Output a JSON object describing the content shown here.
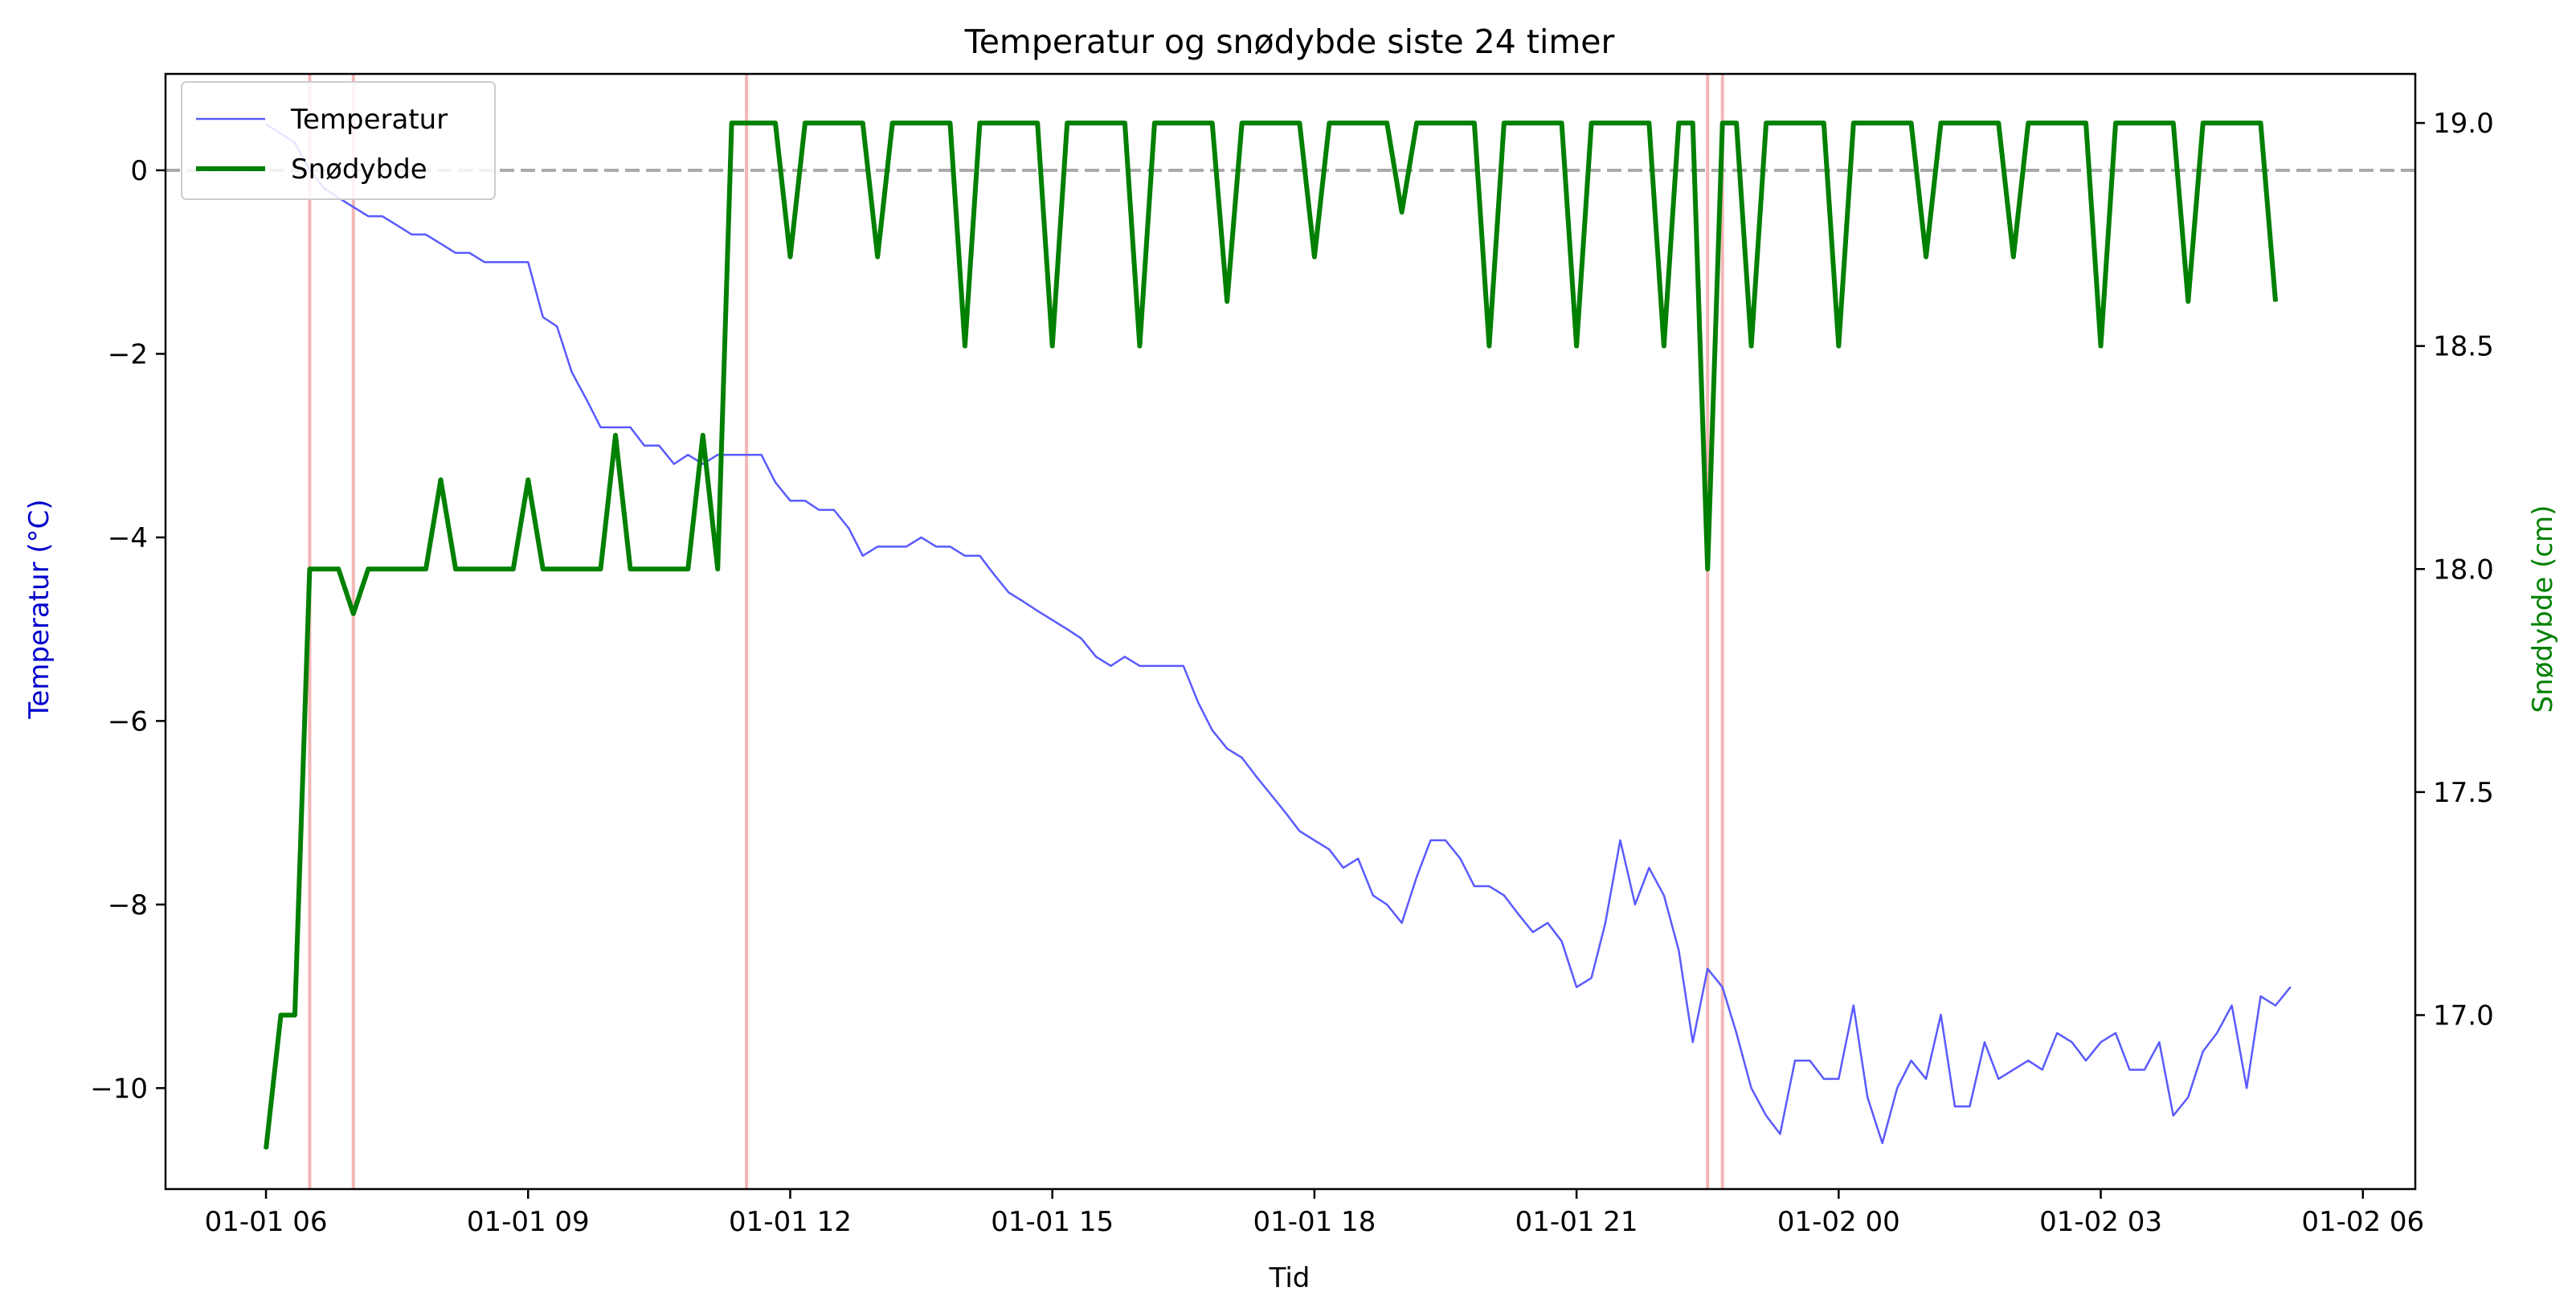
{
  "chart_data": {
    "type": "line",
    "title": "Temperatur og snødybde siste 24 timer",
    "xlabel": "Tid",
    "ylabel_left": "Temperatur (°C)",
    "ylabel_right": "Snødybde (cm)",
    "ylim_left": [
      -11.1,
      1.05
    ],
    "ylim_right": [
      16.61,
      19.11
    ],
    "x_unit": "hours since 01-01 00:00",
    "xlim_hours": [
      4.85,
      30.6
    ],
    "x_ticks": [
      {
        "hours": 6,
        "label": "01-01 06"
      },
      {
        "hours": 9,
        "label": "01-01 09"
      },
      {
        "hours": 12,
        "label": "01-01 12"
      },
      {
        "hours": 15,
        "label": "01-01 15"
      },
      {
        "hours": 18,
        "label": "01-01 18"
      },
      {
        "hours": 21,
        "label": "01-01 21"
      },
      {
        "hours": 24,
        "label": "01-02 00"
      },
      {
        "hours": 27,
        "label": "01-02 03"
      },
      {
        "hours": 30,
        "label": "01-02 06"
      }
    ],
    "y_ticks_left": [
      0,
      -2,
      -4,
      -6,
      -8,
      -10
    ],
    "y_tick_labels_left": [
      "0",
      "−2",
      "−4",
      "−6",
      "−8",
      "−10"
    ],
    "y_ticks_right": [
      19.0,
      18.5,
      18.0,
      17.5,
      17.0
    ],
    "y_tick_labels_right": [
      "19.0",
      "18.5",
      "18.0",
      "17.5",
      "17.0"
    ],
    "reference_line": {
      "y": 0,
      "color": "#aaaaaa",
      "style": "dashed"
    },
    "highlight_times_hours": [
      6.5,
      7.0,
      11.5,
      22.5,
      22.67
    ],
    "highlight_color": "#f4b6b6",
    "legend_position": "upper left",
    "series": [
      {
        "name": "Temperatur",
        "axis": "left",
        "color": "#5a5aff",
        "values": [
          [
            6.0,
            0.5
          ],
          [
            6.17,
            0.4
          ],
          [
            6.33,
            0.3
          ],
          [
            6.5,
            0.0
          ],
          [
            6.67,
            -0.2
          ],
          [
            6.83,
            -0.3
          ],
          [
            7.0,
            -0.4
          ],
          [
            7.17,
            -0.5
          ],
          [
            7.33,
            -0.5
          ],
          [
            7.5,
            -0.6
          ],
          [
            7.67,
            -0.7
          ],
          [
            7.83,
            -0.7
          ],
          [
            8.0,
            -0.8
          ],
          [
            8.17,
            -0.9
          ],
          [
            8.33,
            -0.9
          ],
          [
            8.5,
            -1.0
          ],
          [
            8.67,
            -1.0
          ],
          [
            8.83,
            -1.0
          ],
          [
            9.0,
            -1.0
          ],
          [
            9.17,
            -1.6
          ],
          [
            9.33,
            -1.7
          ],
          [
            9.5,
            -2.2
          ],
          [
            9.67,
            -2.5
          ],
          [
            9.83,
            -2.8
          ],
          [
            10.0,
            -2.8
          ],
          [
            10.17,
            -2.8
          ],
          [
            10.33,
            -3.0
          ],
          [
            10.5,
            -3.0
          ],
          [
            10.67,
            -3.2
          ],
          [
            10.83,
            -3.1
          ],
          [
            11.0,
            -3.2
          ],
          [
            11.17,
            -3.1
          ],
          [
            11.33,
            -3.1
          ],
          [
            11.5,
            -3.1
          ],
          [
            11.67,
            -3.1
          ],
          [
            11.83,
            -3.4
          ],
          [
            12.0,
            -3.6
          ],
          [
            12.17,
            -3.6
          ],
          [
            12.33,
            -3.7
          ],
          [
            12.5,
            -3.7
          ],
          [
            12.67,
            -3.9
          ],
          [
            12.83,
            -4.2
          ],
          [
            13.0,
            -4.1
          ],
          [
            13.17,
            -4.1
          ],
          [
            13.33,
            -4.1
          ],
          [
            13.5,
            -4.0
          ],
          [
            13.67,
            -4.1
          ],
          [
            13.83,
            -4.1
          ],
          [
            14.0,
            -4.2
          ],
          [
            14.17,
            -4.2
          ],
          [
            14.33,
            -4.4
          ],
          [
            14.5,
            -4.6
          ],
          [
            14.67,
            -4.7
          ],
          [
            14.83,
            -4.8
          ],
          [
            15.0,
            -4.9
          ],
          [
            15.17,
            -5.0
          ],
          [
            15.33,
            -5.1
          ],
          [
            15.5,
            -5.3
          ],
          [
            15.67,
            -5.4
          ],
          [
            15.83,
            -5.3
          ],
          [
            16.0,
            -5.4
          ],
          [
            16.17,
            -5.4
          ],
          [
            16.33,
            -5.4
          ],
          [
            16.5,
            -5.4
          ],
          [
            16.67,
            -5.8
          ],
          [
            16.83,
            -6.1
          ],
          [
            17.0,
            -6.3
          ],
          [
            17.17,
            -6.4
          ],
          [
            17.33,
            -6.6
          ],
          [
            17.5,
            -6.8
          ],
          [
            17.67,
            -7.0
          ],
          [
            17.83,
            -7.2
          ],
          [
            18.0,
            -7.3
          ],
          [
            18.17,
            -7.4
          ],
          [
            18.33,
            -7.6
          ],
          [
            18.5,
            -7.5
          ],
          [
            18.67,
            -7.9
          ],
          [
            18.83,
            -8.0
          ],
          [
            19.0,
            -8.2
          ],
          [
            19.17,
            -7.7
          ],
          [
            19.33,
            -7.3
          ],
          [
            19.5,
            -7.3
          ],
          [
            19.67,
            -7.5
          ],
          [
            19.83,
            -7.8
          ],
          [
            20.0,
            -7.8
          ],
          [
            20.17,
            -7.9
          ],
          [
            20.33,
            -8.1
          ],
          [
            20.5,
            -8.3
          ],
          [
            20.67,
            -8.2
          ],
          [
            20.83,
            -8.4
          ],
          [
            21.0,
            -8.9
          ],
          [
            21.17,
            -8.8
          ],
          [
            21.33,
            -8.2
          ],
          [
            21.5,
            -7.3
          ],
          [
            21.67,
            -8.0
          ],
          [
            21.83,
            -7.6
          ],
          [
            22.0,
            -7.9
          ],
          [
            22.17,
            -8.5
          ],
          [
            22.33,
            -9.5
          ],
          [
            22.5,
            -8.7
          ],
          [
            22.67,
            -8.9
          ],
          [
            22.83,
            -9.4
          ],
          [
            23.0,
            -10.0
          ],
          [
            23.17,
            -10.3
          ],
          [
            23.33,
            -10.5
          ],
          [
            23.5,
            -9.7
          ],
          [
            23.67,
            -9.7
          ],
          [
            23.83,
            -9.9
          ],
          [
            24.0,
            -9.9
          ],
          [
            24.17,
            -9.1
          ],
          [
            24.33,
            -10.1
          ],
          [
            24.5,
            -10.6
          ],
          [
            24.67,
            -10.0
          ],
          [
            24.83,
            -9.7
          ],
          [
            25.0,
            -9.9
          ],
          [
            25.17,
            -9.2
          ],
          [
            25.33,
            -10.2
          ],
          [
            25.5,
            -10.2
          ],
          [
            25.67,
            -9.5
          ],
          [
            25.83,
            -9.9
          ],
          [
            26.0,
            -9.8
          ],
          [
            26.17,
            -9.7
          ],
          [
            26.33,
            -9.8
          ],
          [
            26.5,
            -9.4
          ],
          [
            26.67,
            -9.5
          ],
          [
            26.83,
            -9.7
          ],
          [
            27.0,
            -9.5
          ],
          [
            27.17,
            -9.4
          ],
          [
            27.33,
            -9.8
          ],
          [
            27.5,
            -9.8
          ],
          [
            27.67,
            -9.5
          ],
          [
            27.83,
            -10.3
          ],
          [
            28.0,
            -10.1
          ],
          [
            28.17,
            -9.6
          ],
          [
            28.33,
            -9.4
          ],
          [
            28.5,
            -9.1
          ],
          [
            28.67,
            -10.0
          ],
          [
            28.83,
            -9.0
          ],
          [
            29.0,
            -9.1
          ],
          [
            29.17,
            -8.9
          ]
        ]
      },
      {
        "name": "Snødybde",
        "axis": "right",
        "color": "#008000",
        "values": [
          [
            6.0,
            16.7
          ],
          [
            6.17,
            17.0
          ],
          [
            6.33,
            17.0
          ],
          [
            6.5,
            18.0
          ],
          [
            6.67,
            18.0
          ],
          [
            6.83,
            18.0
          ],
          [
            7.0,
            17.9
          ],
          [
            7.17,
            18.0
          ],
          [
            7.33,
            18.0
          ],
          [
            7.5,
            18.0
          ],
          [
            7.67,
            18.0
          ],
          [
            7.83,
            18.0
          ],
          [
            8.0,
            18.2
          ],
          [
            8.17,
            18.0
          ],
          [
            8.33,
            18.0
          ],
          [
            8.5,
            18.0
          ],
          [
            8.67,
            18.0
          ],
          [
            8.83,
            18.0
          ],
          [
            9.0,
            18.2
          ],
          [
            9.17,
            18.0
          ],
          [
            9.33,
            18.0
          ],
          [
            9.5,
            18.0
          ],
          [
            9.67,
            18.0
          ],
          [
            9.83,
            18.0
          ],
          [
            10.0,
            18.3
          ],
          [
            10.17,
            18.0
          ],
          [
            10.33,
            18.0
          ],
          [
            10.5,
            18.0
          ],
          [
            10.67,
            18.0
          ],
          [
            10.83,
            18.0
          ],
          [
            11.0,
            18.3
          ],
          [
            11.17,
            18.0
          ],
          [
            11.33,
            19.0
          ],
          [
            11.5,
            19.0
          ],
          [
            11.67,
            19.0
          ],
          [
            11.83,
            19.0
          ],
          [
            12.0,
            18.7
          ],
          [
            12.17,
            19.0
          ],
          [
            12.33,
            19.0
          ],
          [
            12.5,
            19.0
          ],
          [
            12.67,
            19.0
          ],
          [
            12.83,
            19.0
          ],
          [
            13.0,
            18.7
          ],
          [
            13.17,
            19.0
          ],
          [
            13.33,
            19.0
          ],
          [
            13.5,
            19.0
          ],
          [
            13.67,
            19.0
          ],
          [
            13.83,
            19.0
          ],
          [
            14.0,
            18.5
          ],
          [
            14.17,
            19.0
          ],
          [
            14.33,
            19.0
          ],
          [
            14.5,
            19.0
          ],
          [
            14.67,
            19.0
          ],
          [
            14.83,
            19.0
          ],
          [
            15.0,
            18.5
          ],
          [
            15.17,
            19.0
          ],
          [
            15.33,
            19.0
          ],
          [
            15.5,
            19.0
          ],
          [
            15.67,
            19.0
          ],
          [
            15.83,
            19.0
          ],
          [
            16.0,
            18.5
          ],
          [
            16.17,
            19.0
          ],
          [
            16.33,
            19.0
          ],
          [
            16.5,
            19.0
          ],
          [
            16.67,
            19.0
          ],
          [
            16.83,
            19.0
          ],
          [
            17.0,
            18.6
          ],
          [
            17.17,
            19.0
          ],
          [
            17.33,
            19.0
          ],
          [
            17.5,
            19.0
          ],
          [
            17.67,
            19.0
          ],
          [
            17.83,
            19.0
          ],
          [
            18.0,
            18.7
          ],
          [
            18.17,
            19.0
          ],
          [
            18.33,
            19.0
          ],
          [
            18.5,
            19.0
          ],
          [
            18.67,
            19.0
          ],
          [
            18.83,
            19.0
          ],
          [
            19.0,
            18.8
          ],
          [
            19.17,
            19.0
          ],
          [
            19.33,
            19.0
          ],
          [
            19.5,
            19.0
          ],
          [
            19.67,
            19.0
          ],
          [
            19.83,
            19.0
          ],
          [
            20.0,
            18.5
          ],
          [
            20.17,
            19.0
          ],
          [
            20.33,
            19.0
          ],
          [
            20.5,
            19.0
          ],
          [
            20.67,
            19.0
          ],
          [
            20.83,
            19.0
          ],
          [
            21.0,
            18.5
          ],
          [
            21.17,
            19.0
          ],
          [
            21.33,
            19.0
          ],
          [
            21.5,
            19.0
          ],
          [
            21.67,
            19.0
          ],
          [
            21.83,
            19.0
          ],
          [
            22.0,
            18.5
          ],
          [
            22.17,
            19.0
          ],
          [
            22.33,
            19.0
          ],
          [
            22.5,
            18.0
          ],
          [
            22.67,
            19.0
          ],
          [
            22.83,
            19.0
          ],
          [
            23.0,
            18.5
          ],
          [
            23.17,
            19.0
          ],
          [
            23.33,
            19.0
          ],
          [
            23.5,
            19.0
          ],
          [
            23.67,
            19.0
          ],
          [
            23.83,
            19.0
          ],
          [
            24.0,
            18.5
          ],
          [
            24.17,
            19.0
          ],
          [
            24.33,
            19.0
          ],
          [
            24.5,
            19.0
          ],
          [
            24.67,
            19.0
          ],
          [
            24.83,
            19.0
          ],
          [
            25.0,
            18.7
          ],
          [
            25.17,
            19.0
          ],
          [
            25.33,
            19.0
          ],
          [
            25.5,
            19.0
          ],
          [
            25.67,
            19.0
          ],
          [
            25.83,
            19.0
          ],
          [
            26.0,
            18.7
          ],
          [
            26.17,
            19.0
          ],
          [
            26.33,
            19.0
          ],
          [
            26.5,
            19.0
          ],
          [
            26.67,
            19.0
          ],
          [
            26.83,
            19.0
          ],
          [
            27.0,
            18.5
          ],
          [
            27.17,
            19.0
          ],
          [
            27.33,
            19.0
          ],
          [
            27.5,
            19.0
          ],
          [
            27.67,
            19.0
          ],
          [
            27.83,
            19.0
          ],
          [
            28.0,
            18.6
          ],
          [
            28.17,
            19.0
          ],
          [
            28.33,
            19.0
          ],
          [
            28.5,
            19.0
          ],
          [
            28.67,
            19.0
          ],
          [
            28.83,
            19.0
          ],
          [
            29.0,
            18.6
          ]
        ]
      }
    ]
  }
}
